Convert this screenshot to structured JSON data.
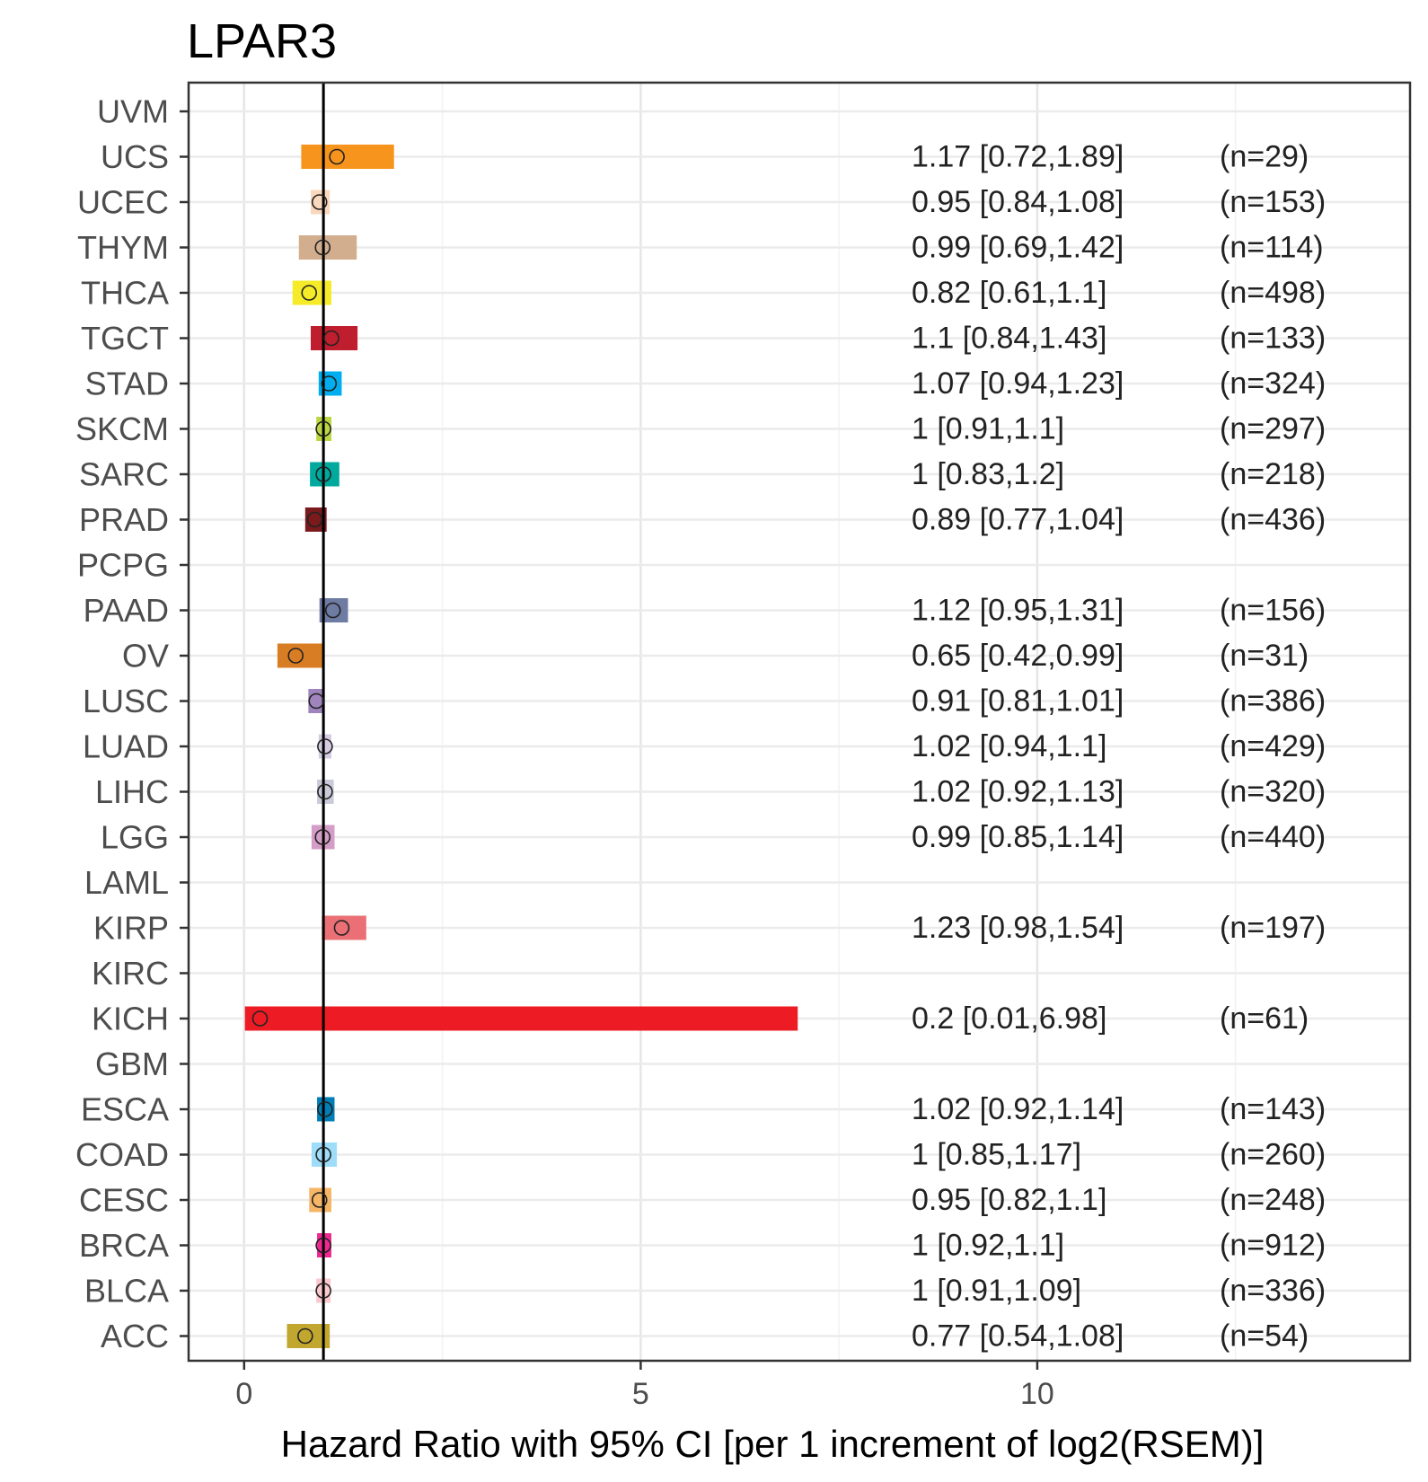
{
  "chart_data": {
    "type": "forest",
    "title": "LPAR3",
    "xlabel": "Hazard Ratio with 95% CI [per 1 increment of log2(RSEM)]",
    "ylabel": "",
    "xlim": [
      -0.7,
      14.7
    ],
    "x_ticks": [
      0,
      5,
      10
    ],
    "x_tick_labels": [
      "0",
      "5",
      "10"
    ],
    "minor_x_ticks": [
      2.5,
      7.5,
      12.5
    ],
    "reference_line": 1,
    "grid": true,
    "rows": [
      {
        "cancer": "UVM",
        "hr": null,
        "lower": null,
        "upper": null,
        "label": "",
        "n": "",
        "color": ""
      },
      {
        "cancer": "UCS",
        "hr": 1.17,
        "lower": 0.72,
        "upper": 1.89,
        "label": "1.17 [0.72,1.89]",
        "n": "(n=29)",
        "color": "#F7941D"
      },
      {
        "cancer": "UCEC",
        "hr": 0.95,
        "lower": 0.84,
        "upper": 1.08,
        "label": "0.95 [0.84,1.08]",
        "n": "(n=153)",
        "color": "#FAD8BE"
      },
      {
        "cancer": "THYM",
        "hr": 0.99,
        "lower": 0.69,
        "upper": 1.42,
        "label": "0.99 [0.69,1.42]",
        "n": "(n=114)",
        "color": "#D2AE8E"
      },
      {
        "cancer": "THCA",
        "hr": 0.82,
        "lower": 0.61,
        "upper": 1.1,
        "label": "0.82 [0.61,1.1]",
        "n": "(n=498)",
        "color": "#F5EB28"
      },
      {
        "cancer": "TGCT",
        "hr": 1.1,
        "lower": 0.84,
        "upper": 1.43,
        "label": "1.1 [0.84,1.43]",
        "n": "(n=133)",
        "color": "#BE1E2D"
      },
      {
        "cancer": "STAD",
        "hr": 1.07,
        "lower": 0.94,
        "upper": 1.23,
        "label": "1.07 [0.94,1.23]",
        "n": "(n=324)",
        "color": "#00AEEF"
      },
      {
        "cancer": "SKCM",
        "hr": 1.0,
        "lower": 0.91,
        "upper": 1.1,
        "label": "1 [0.91,1.1]",
        "n": "(n=297)",
        "color": "#BBD642"
      },
      {
        "cancer": "SARC",
        "hr": 1.0,
        "lower": 0.83,
        "upper": 1.2,
        "label": "1 [0.83,1.2]",
        "n": "(n=218)",
        "color": "#00A99D"
      },
      {
        "cancer": "PRAD",
        "hr": 0.89,
        "lower": 0.77,
        "upper": 1.04,
        "label": "0.89 [0.77,1.04]",
        "n": "(n=436)",
        "color": "#7A1A1D"
      },
      {
        "cancer": "PCPG",
        "hr": null,
        "lower": null,
        "upper": null,
        "label": "",
        "n": "",
        "color": ""
      },
      {
        "cancer": "PAAD",
        "hr": 1.12,
        "lower": 0.95,
        "upper": 1.31,
        "label": "1.12 [0.95,1.31]",
        "n": "(n=156)",
        "color": "#6E7BA2"
      },
      {
        "cancer": "OV",
        "hr": 0.65,
        "lower": 0.42,
        "upper": 0.99,
        "label": "0.65 [0.42,0.99]",
        "n": "(n=31)",
        "color": "#D97D25"
      },
      {
        "cancer": "LUSC",
        "hr": 0.91,
        "lower": 0.81,
        "upper": 1.01,
        "label": "0.91 [0.81,1.01]",
        "n": "(n=386)",
        "color": "#A084BD"
      },
      {
        "cancer": "LUAD",
        "hr": 1.02,
        "lower": 0.94,
        "upper": 1.1,
        "label": "1.02 [0.94,1.1]",
        "n": "(n=429)",
        "color": "#D5CBE3"
      },
      {
        "cancer": "LIHC",
        "hr": 1.02,
        "lower": 0.92,
        "upper": 1.13,
        "label": "1.02 [0.92,1.13]",
        "n": "(n=320)",
        "color": "#CACADA"
      },
      {
        "cancer": "LGG",
        "hr": 0.99,
        "lower": 0.85,
        "upper": 1.14,
        "label": "0.99 [0.85,1.14]",
        "n": "(n=440)",
        "color": "#D49DC7"
      },
      {
        "cancer": "LAML",
        "hr": null,
        "lower": null,
        "upper": null,
        "label": "",
        "n": "",
        "color": ""
      },
      {
        "cancer": "KIRP",
        "hr": 1.23,
        "lower": 0.98,
        "upper": 1.54,
        "label": "1.23 [0.98,1.54]",
        "n": "(n=197)",
        "color": "#EA7075"
      },
      {
        "cancer": "KIRC",
        "hr": null,
        "lower": null,
        "upper": null,
        "label": "",
        "n": "",
        "color": ""
      },
      {
        "cancer": "KICH",
        "hr": 0.2,
        "lower": 0.01,
        "upper": 6.98,
        "label": "0.2 [0.01,6.98]",
        "n": "(n=61)",
        "color": "#ED1C24"
      },
      {
        "cancer": "GBM",
        "hr": null,
        "lower": null,
        "upper": null,
        "label": "",
        "n": "",
        "color": ""
      },
      {
        "cancer": "ESCA",
        "hr": 1.02,
        "lower": 0.92,
        "upper": 1.14,
        "label": "1.02 [0.92,1.14]",
        "n": "(n=143)",
        "color": "#007EB5"
      },
      {
        "cancer": "COAD",
        "hr": 1.0,
        "lower": 0.85,
        "upper": 1.17,
        "label": "1 [0.85,1.17]",
        "n": "(n=260)",
        "color": "#9EDDF9"
      },
      {
        "cancer": "CESC",
        "hr": 0.95,
        "lower": 0.82,
        "upper": 1.1,
        "label": "0.95 [0.82,1.1]",
        "n": "(n=248)",
        "color": "#F6B667"
      },
      {
        "cancer": "BRCA",
        "hr": 1.0,
        "lower": 0.92,
        "upper": 1.1,
        "label": "1 [0.92,1.1]",
        "n": "(n=912)",
        "color": "#ED2891"
      },
      {
        "cancer": "BLCA",
        "hr": 1.0,
        "lower": 0.91,
        "upper": 1.09,
        "label": "1 [0.91,1.09]",
        "n": "(n=336)",
        "color": "#FAC8CD"
      },
      {
        "cancer": "ACC",
        "hr": 0.77,
        "lower": 0.54,
        "upper": 1.08,
        "label": "0.77 [0.54,1.08]",
        "n": "(n=54)",
        "color": "#C1A72F"
      }
    ]
  }
}
